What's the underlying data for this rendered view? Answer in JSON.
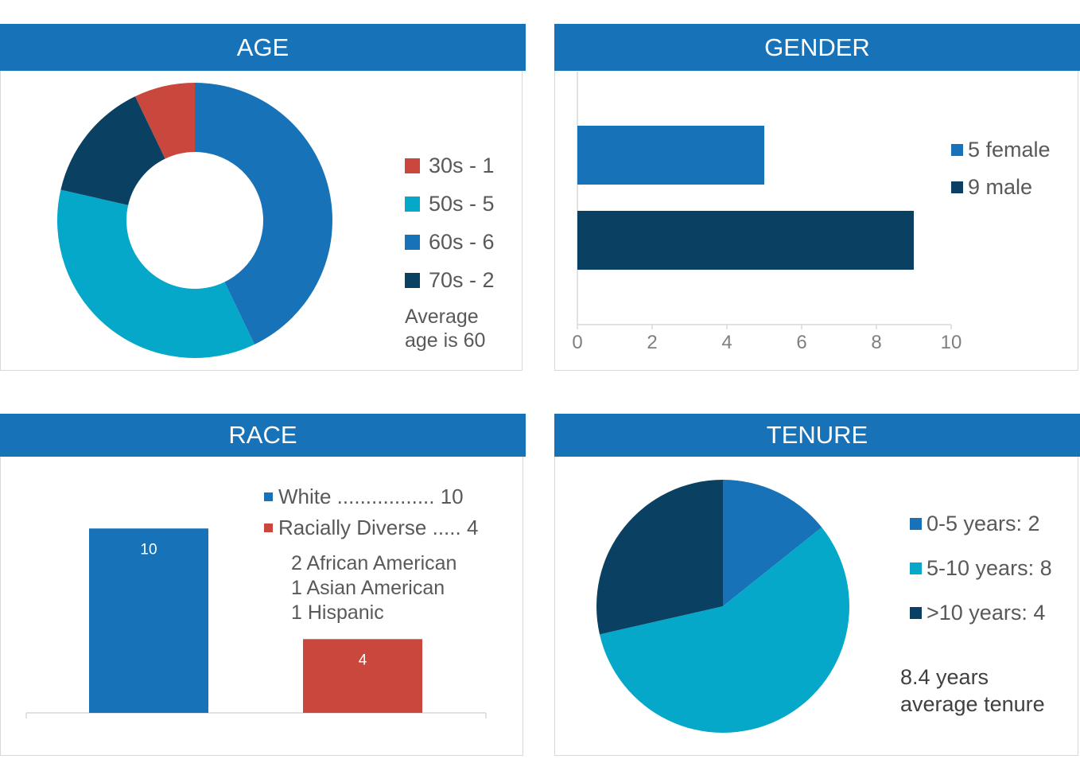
{
  "colors": {
    "header_bg": "#1772b8",
    "c30s": "#c9473c",
    "c50s": "#05a8c9",
    "c60s": "#1772b8",
    "c70s": "#0a4163",
    "axis": "#d9d9d9",
    "text": "#595959"
  },
  "headers": {
    "age": "AGE",
    "gender": "GENDER",
    "race": "RACE",
    "tenure": "TENURE"
  },
  "age": {
    "legend": [
      "30s - 1",
      "50s - 5",
      "60s - 6",
      "70s - 2"
    ],
    "note_line1": "Average",
    "note_line2": "age is 60"
  },
  "gender": {
    "legend": [
      "5 female",
      "9 male"
    ]
  },
  "race": {
    "legend": [
      "White ................. 10",
      "Racially Diverse ..... 4"
    ],
    "breakdown": [
      "2 African American",
      "1 Asian American",
      "1 Hispanic"
    ]
  },
  "tenure": {
    "legend": [
      "0-5 years: 2",
      "5-10 years: 8",
      ">10 years: 4"
    ],
    "note_line1": "8.4 years",
    "note_line2": "average tenure"
  },
  "chart_data": [
    {
      "type": "pie",
      "variant": "donut",
      "title": "AGE",
      "categories": [
        "60s",
        "50s",
        "70s",
        "30s"
      ],
      "values": [
        6,
        5,
        2,
        1
      ],
      "colors": [
        "#1772b8",
        "#05a8c9",
        "#0a4163",
        "#c9473c"
      ]
    },
    {
      "type": "bar",
      "orientation": "horizontal",
      "title": "GENDER",
      "categories": [
        "female",
        "male"
      ],
      "values": [
        5,
        9
      ],
      "colors": [
        "#1772b8",
        "#0a4163"
      ],
      "xlim": [
        0,
        10
      ],
      "xticks": [
        "0",
        "2",
        "4",
        "6",
        "8",
        "10"
      ]
    },
    {
      "type": "bar",
      "title": "RACE",
      "categories": [
        "White",
        "Racially Diverse"
      ],
      "values": [
        10,
        4
      ],
      "data_labels": [
        "10",
        "4"
      ],
      "colors": [
        "#1772b8",
        "#c9473c"
      ],
      "ylim": [
        0,
        12.6
      ]
    },
    {
      "type": "pie",
      "title": "TENURE",
      "categories": [
        "0-5 years",
        "5-10 years",
        ">10 years"
      ],
      "values": [
        2,
        8,
        4
      ],
      "colors": [
        "#1772b8",
        "#05a8c9",
        "#0a4163"
      ]
    }
  ]
}
